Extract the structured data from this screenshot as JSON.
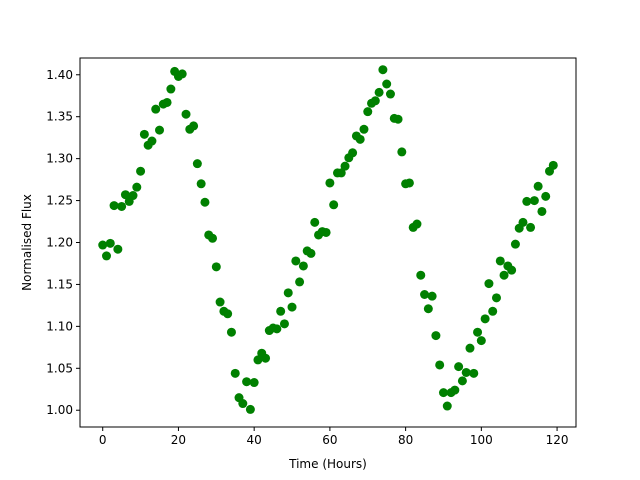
{
  "chart_data": {
    "type": "scatter",
    "title": "",
    "xlabel": "Time (Hours)",
    "ylabel": "Normalised Flux",
    "xlim": [
      -6,
      125
    ],
    "ylim": [
      0.98,
      1.42
    ],
    "xticks": [
      0,
      20,
      40,
      60,
      80,
      100,
      120
    ],
    "yticks": [
      1.0,
      1.05,
      1.1,
      1.15,
      1.2,
      1.25,
      1.3,
      1.35,
      1.4
    ],
    "ytick_labels": [
      "1.00",
      "1.05",
      "1.10",
      "1.15",
      "1.20",
      "1.25",
      "1.30",
      "1.35",
      "1.40"
    ],
    "grid": false,
    "marker_color": "#008000",
    "x": [
      0,
      1,
      2,
      3,
      4,
      5,
      6,
      7,
      8,
      9,
      10,
      11,
      12,
      13,
      14,
      15,
      16,
      17,
      18,
      19,
      20,
      21,
      22,
      23,
      24,
      25,
      26,
      27,
      28,
      29,
      30,
      31,
      32,
      33,
      34,
      35,
      36,
      37,
      38,
      39,
      40,
      41,
      42,
      43,
      44,
      45,
      46,
      47,
      48,
      49,
      50,
      51,
      52,
      53,
      54,
      55,
      56,
      57,
      58,
      59,
      60,
      61,
      62,
      63,
      64,
      65,
      66,
      67,
      68,
      69,
      70,
      71,
      72,
      73,
      74,
      75,
      76,
      77,
      78,
      79,
      80,
      81,
      82,
      83,
      84,
      85,
      86,
      87,
      88,
      89,
      90,
      91,
      92,
      93,
      94,
      95,
      96,
      97,
      98,
      99,
      100,
      101,
      102,
      103,
      104,
      105,
      106,
      107,
      108,
      109,
      110,
      111,
      112,
      113,
      114,
      115,
      116,
      117,
      118,
      119
    ],
    "y": [
      1.197,
      1.184,
      1.199,
      1.244,
      1.192,
      1.243,
      1.257,
      1.249,
      1.256,
      1.266,
      1.285,
      1.329,
      1.316,
      1.321,
      1.359,
      1.334,
      1.365,
      1.367,
      1.383,
      1.404,
      1.398,
      1.401,
      1.353,
      1.335,
      1.339,
      1.294,
      1.27,
      1.248,
      1.209,
      1.205,
      1.171,
      1.129,
      1.118,
      1.115,
      1.093,
      1.044,
      1.015,
      1.008,
      1.034,
      1.001,
      1.033,
      1.06,
      1.068,
      1.062,
      1.095,
      1.098,
      1.097,
      1.118,
      1.103,
      1.14,
      1.123,
      1.178,
      1.153,
      1.172,
      1.19,
      1.187,
      1.224,
      1.209,
      1.213,
      1.212,
      1.271,
      1.245,
      1.283,
      1.283,
      1.291,
      1.301,
      1.307,
      1.327,
      1.323,
      1.335,
      1.356,
      1.366,
      1.369,
      1.379,
      1.406,
      1.389,
      1.377,
      1.348,
      1.347,
      1.308,
      1.27,
      1.271,
      1.218,
      1.222,
      1.161,
      1.138,
      1.121,
      1.136,
      1.089,
      1.054,
      1.021,
      1.005,
      1.021,
      1.024,
      1.052,
      1.035,
      1.045,
      1.074,
      1.044,
      1.093,
      1.083,
      1.109,
      1.151,
      1.118,
      1.134,
      1.178,
      1.161,
      1.172,
      1.167,
      1.198,
      1.217,
      1.224,
      1.249,
      1.218,
      1.25,
      1.267,
      1.237,
      1.255,
      1.285,
      1.292
    ]
  }
}
